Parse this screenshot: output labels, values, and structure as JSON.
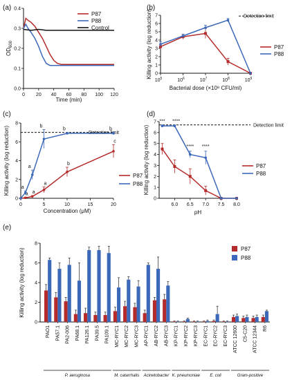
{
  "panel_labels": [
    "(a)",
    "(b)",
    "(c)",
    "(d)",
    "(e)"
  ],
  "chart_data": [
    {
      "panel": "(a)",
      "type": "line",
      "xlabel": "Time (min)",
      "ylabel": "OD",
      "ylabel_sub": "600",
      "xlim": [
        0,
        120
      ],
      "ylim": [
        0,
        0.4
      ],
      "xticks": [
        "0",
        "20",
        "40",
        "60",
        "80",
        "100",
        "120"
      ],
      "yticks": [
        "0.0",
        "0.1",
        "0.2",
        "0.3",
        "0.4"
      ],
      "legend": "top-right",
      "series": [
        {
          "name": "P87",
          "color": "#b52a2a",
          "x": [
            0,
            3,
            6,
            10,
            15,
            20,
            25,
            30,
            35,
            40,
            45,
            50,
            60,
            70,
            80,
            90,
            100,
            110,
            120
          ],
          "y": [
            0.3,
            0.35,
            0.34,
            0.33,
            0.31,
            0.28,
            0.25,
            0.21,
            0.17,
            0.14,
            0.125,
            0.12,
            0.12,
            0.12,
            0.12,
            0.12,
            0.12,
            0.12,
            0.12
          ]
        },
        {
          "name": "P88",
          "color": "#3b68b8",
          "x": [
            0,
            3,
            6,
            10,
            15,
            20,
            25,
            30,
            35,
            40,
            45,
            50,
            60,
            70,
            80,
            90,
            100,
            110,
            120
          ],
          "y": [
            0.3,
            0.32,
            0.3,
            0.28,
            0.25,
            0.21,
            0.16,
            0.125,
            0.115,
            0.115,
            0.115,
            0.115,
            0.115,
            0.115,
            0.115,
            0.115,
            0.115,
            0.115,
            0.115
          ]
        },
        {
          "name": "Control",
          "color": "#111111",
          "x": [
            0,
            10,
            20,
            30,
            40,
            50,
            60,
            70,
            80,
            90,
            100,
            110,
            120
          ],
          "y": [
            0.295,
            0.29,
            0.295,
            0.29,
            0.29,
            0.29,
            0.29,
            0.29,
            0.29,
            0.29,
            0.29,
            0.29,
            0.29
          ]
        }
      ]
    },
    {
      "panel": "(b)",
      "type": "line",
      "xlabel": "Bacterial dose (×10⁸ CFU/ml)",
      "ylabel": "Killing activity (log reduction)",
      "xscale": "log",
      "xlim_log": [
        5,
        9
      ],
      "ylim": [
        0,
        7
      ],
      "xtick_bases": [
        "10",
        "10",
        "10",
        "10",
        "10"
      ],
      "xtick_exps": [
        "5",
        "6",
        "7",
        "8",
        "9"
      ],
      "yticks": [
        "0",
        "1",
        "2",
        "3",
        "4",
        "5",
        "6",
        "7"
      ],
      "reference_line": {
        "label": "Detection limit",
        "y": 6.9
      },
      "legend": "right",
      "series": [
        {
          "name": "P87",
          "color": "#b52a2a",
          "x_log": [
            5,
            6,
            7,
            8,
            9
          ],
          "y": [
            3.2,
            4.4,
            4.8,
            1.4,
            0
          ],
          "err": [
            0.3,
            0.3,
            0.6,
            0.4,
            0
          ]
        },
        {
          "name": "P88",
          "color": "#3b68b8",
          "x_log": [
            5,
            6,
            7,
            8,
            9
          ],
          "y": [
            3.5,
            4.5,
            5.5,
            6.4,
            0
          ],
          "err": [
            0.3,
            0.2,
            0.3,
            0.2,
            0
          ]
        }
      ]
    },
    {
      "panel": "(c)",
      "type": "line",
      "xlabel": "Concentration (μM)",
      "ylabel": "Killing activity (log reduction)",
      "xlim": [
        0,
        20
      ],
      "ylim": [
        0,
        8
      ],
      "xticks": [
        "0",
        "5",
        "10",
        "15",
        "20"
      ],
      "yticks": [
        "0",
        "2",
        "4",
        "6",
        "8"
      ],
      "reference_line": {
        "label": "Detection limit",
        "y": 7
      },
      "legend": "right",
      "series": [
        {
          "name": "P87",
          "color": "#b52a2a",
          "x": [
            0,
            1,
            2.5,
            5,
            10,
            20
          ],
          "y": [
            0,
            0.05,
            0.2,
            0.9,
            2.8,
            5.0
          ],
          "err": [
            0,
            0.05,
            0.1,
            0.3,
            0.5,
            0.7
          ],
          "letters": [
            "a",
            "a",
            "a",
            "a",
            "b",
            "c"
          ]
        },
        {
          "name": "P88",
          "color": "#3b68b8",
          "x": [
            0,
            1,
            2.5,
            5,
            10,
            20
          ],
          "y": [
            0,
            0.6,
            2.5,
            6.3,
            6.9,
            6.9
          ],
          "err": [
            0,
            0.2,
            0.5,
            1.0,
            0.1,
            0.1
          ],
          "letters": [
            "a",
            "a",
            "a",
            "b",
            "b",
            "b"
          ]
        }
      ]
    },
    {
      "panel": "(d)",
      "type": "line",
      "xlabel": "pH",
      "ylabel": "Killing activity (log reduction)",
      "xlim": [
        5.5,
        8.0
      ],
      "ylim": [
        0,
        7
      ],
      "xticks": [
        "6.0",
        "6.5",
        "7.0",
        "7.5",
        "8.0"
      ],
      "yticks": [
        "0",
        "1",
        "2",
        "3",
        "4",
        "5",
        "6",
        "7"
      ],
      "reference_line": {
        "label": "Detection limit",
        "y": 6.7
      },
      "legend": "right",
      "series": [
        {
          "name": "P87",
          "color": "#b52a2a",
          "x": [
            5.6,
            6.0,
            6.5,
            7.0,
            7.5,
            8.0
          ],
          "y": [
            4.5,
            2.9,
            2.0,
            0.7,
            0,
            0
          ],
          "err": [
            0.5,
            0.6,
            0.7,
            0.4,
            0,
            0
          ]
        },
        {
          "name": "P88",
          "color": "#3b68b8",
          "x": [
            5.6,
            6.0,
            6.5,
            7.0,
            7.5,
            8.0
          ],
          "y": [
            6.6,
            6.6,
            4.0,
            3.7,
            0,
            0
          ],
          "err": [
            0.1,
            0.1,
            0.3,
            0.6,
            0,
            0
          ]
        }
      ],
      "annotations": [
        {
          "text": "***",
          "x": 5.6,
          "y": 6.9
        },
        {
          "text": "****",
          "x": 6.05,
          "y": 6.9
        },
        {
          "text": "****",
          "x": 6.5,
          "y": 4.6
        },
        {
          "text": "****",
          "x": 7.0,
          "y": 4.6
        }
      ]
    },
    {
      "panel": "(e)",
      "type": "bar",
      "ylabel": "Killing activity (log reduction)",
      "ylim": [
        0,
        8
      ],
      "yticks": [
        "0",
        "2",
        "4",
        "6",
        "8"
      ],
      "legend": "top-right",
      "categories": [
        "PAO1",
        "PA57.1",
        "PA2-006",
        "PA68.1",
        "PA126.1",
        "PA39.5",
        "PA109.1",
        "MC-RYC1",
        "MC-RYC2",
        "MC-RYC3",
        "AP-RYC1",
        "AB-RYC2",
        "AB-RYC3",
        "KP-RYC1",
        "KP-RYC2",
        "KP-RYC3",
        "EC-RYC1",
        "EC-RYC2",
        "EC-RYC3",
        "ATCC 12600",
        "C5-C20",
        "ATCC 12344",
        "R6"
      ],
      "series": [
        {
          "name": "P87",
          "color": "#b52a2a",
          "values": [
            3.2,
            2.5,
            2.1,
            0.8,
            0.9,
            0.7,
            0.7,
            1.1,
            1.6,
            1.5,
            0.9,
            2.2,
            2.3,
            0.05,
            0.05,
            0.05,
            0.05,
            0.1,
            0.05,
            0.5,
            0.4,
            0.4,
            0.5
          ],
          "err": [
            0.6,
            0.5,
            0.4,
            0.4,
            0.5,
            0.3,
            0.3,
            0.4,
            0.5,
            0.4,
            0.3,
            0.3,
            0.5,
            0.05,
            0.05,
            0.05,
            0.05,
            0.1,
            0.05,
            0.2,
            0.2,
            0.2,
            0.2
          ]
        },
        {
          "name": "P88",
          "color": "#3b68b8",
          "values": [
            6.3,
            5.4,
            5.8,
            4.2,
            7.3,
            7.3,
            7.0,
            3.5,
            4.3,
            3.6,
            5.8,
            5.4,
            3.7,
            0.05,
            0.3,
            0.05,
            0.1,
            0.8,
            0.05,
            0.6,
            0.5,
            0.5,
            1.1
          ],
          "err": [
            0.2,
            0.6,
            0.7,
            1.8,
            0.3,
            0.4,
            0.7,
            1.0,
            0.3,
            0.6,
            0.2,
            1.2,
            0.4,
            0.05,
            0.1,
            0.05,
            0.1,
            0.8,
            0.05,
            0.2,
            0.2,
            0.2,
            0.1
          ]
        }
      ],
      "groups": [
        {
          "label": "P. aeruginosa",
          "from": 0,
          "to": 6
        },
        {
          "label": "M. catarrhalis",
          "from": 7,
          "to": 9
        },
        {
          "label": "Acinetobacter",
          "from": 10,
          "to": 12
        },
        {
          "label": "K. pneumoniae",
          "from": 13,
          "to": 15
        },
        {
          "label": "E. coli",
          "from": 16,
          "to": 18
        },
        {
          "label": "Gram-positive",
          "from": 19,
          "to": 22
        }
      ]
    }
  ]
}
